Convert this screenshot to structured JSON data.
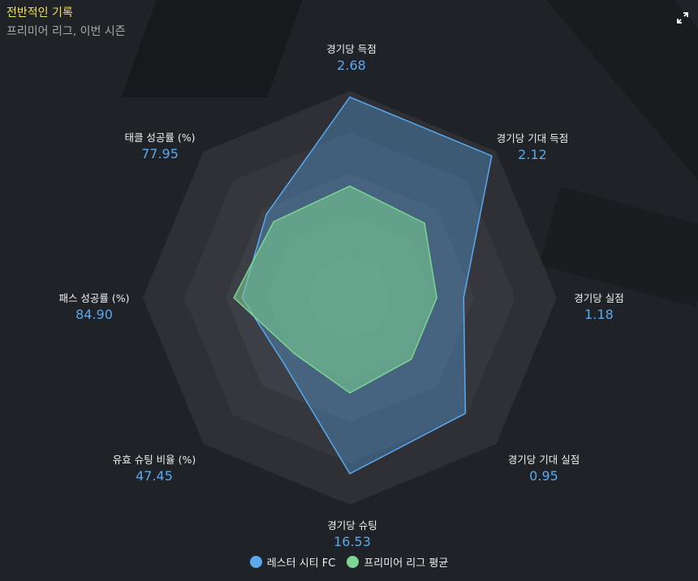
{
  "header": {
    "title": "전반적인 기록",
    "subtitle": "프리미어 리그, 이번 시즌"
  },
  "icons": {
    "expand": "expand-icon"
  },
  "colors": {
    "background": "#1f2226",
    "title": "#f2e35a",
    "value_text": "#5aa9ee",
    "series_team": "#5aa9ee",
    "series_league": "#7ed492"
  },
  "chart_data": {
    "type": "radar",
    "axes": [
      {
        "name": "경기당 득점",
        "value_label": "2.68"
      },
      {
        "name": "경기당 기대 득점",
        "value_label": "2.12"
      },
      {
        "name": "경기당 실점",
        "value_label": "1.18"
      },
      {
        "name": "경기당 기대 실점",
        "value_label": "0.95"
      },
      {
        "name": "경기당 슈팅",
        "value_label": "16.53"
      },
      {
        "name": "유효 슈팅 비율 (%)",
        "value_label": "47.45"
      },
      {
        "name": "패스 성공률 (%)",
        "value_label": "84.90"
      },
      {
        "name": "태클 성공률 (%)",
        "value_label": "77.95"
      }
    ],
    "rings": 5,
    "series": [
      {
        "name": "레스터 시티 FC",
        "color": "#5aa9ee",
        "values": [
          0.97,
          0.97,
          0.55,
          0.79,
          0.85,
          0.45,
          0.52,
          0.57
        ]
      },
      {
        "name": "프리미어 리그 평균",
        "color": "#7ed492",
        "values": [
          0.54,
          0.51,
          0.42,
          0.42,
          0.46,
          0.38,
          0.56,
          0.52
        ]
      }
    ],
    "legend_position": "bottom"
  }
}
